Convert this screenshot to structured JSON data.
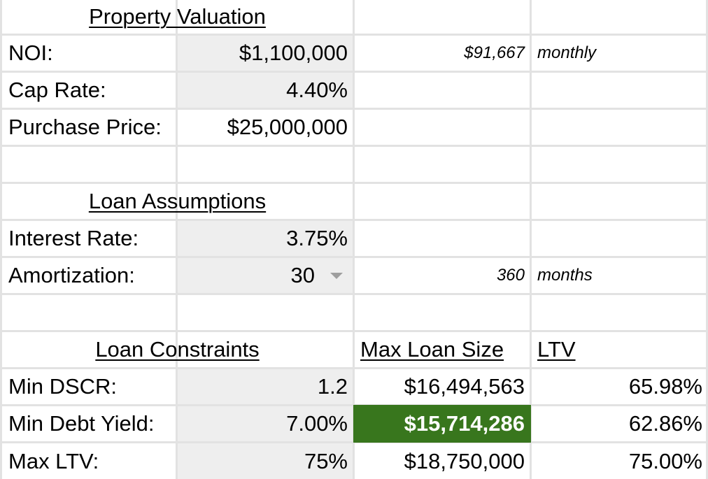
{
  "sheet": {
    "property_valuation": {
      "header": "Property Valuation",
      "noi_label": "NOI:",
      "noi_value": "$1,100,000",
      "noi_monthly_value": "$91,667",
      "noi_monthly_label": "monthly",
      "cap_rate_label": "Cap Rate:",
      "cap_rate_value": "4.40%",
      "purchase_price_label": "Purchase Price:",
      "purchase_price_value": "$25,000,000"
    },
    "loan_assumptions": {
      "header": "Loan Assumptions",
      "interest_rate_label": "Interest Rate:",
      "interest_rate_value": "3.75%",
      "amortization_label": "Amortization:",
      "amortization_value": "30",
      "amortization_months_value": "360",
      "amortization_months_label": "months"
    },
    "loan_constraints": {
      "header": "Loan Constraints",
      "max_loan_header": "Max Loan Size",
      "ltv_header": "LTV",
      "rows": [
        {
          "label": "Min DSCR:",
          "value": "1.2",
          "max_loan": "$16,494,563",
          "ltv": "65.98%"
        },
        {
          "label": "Min Debt Yield:",
          "value": "7.00%",
          "max_loan": "$15,714,286",
          "ltv": "62.86%"
        },
        {
          "label": "Max LTV:",
          "value": "75%",
          "max_loan": "$18,750,000",
          "ltv": "75.00%"
        }
      ]
    },
    "colors": {
      "highlight_fill": "#38761d",
      "input_fill": "#eeeeee",
      "gridline": "#e2e2e2"
    },
    "icons": {
      "dropdown": "chevron-down-icon"
    }
  }
}
